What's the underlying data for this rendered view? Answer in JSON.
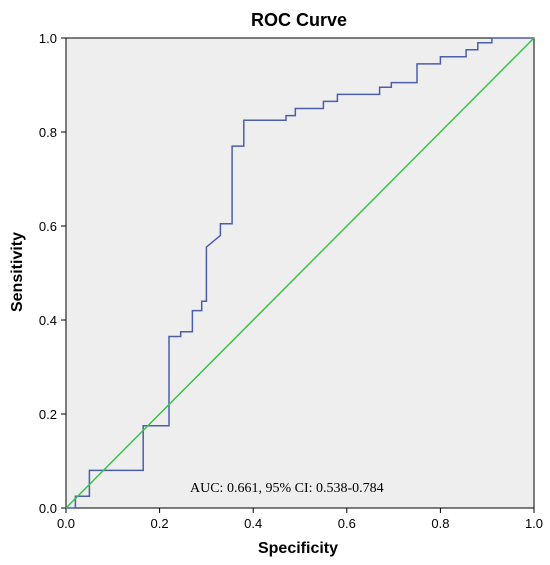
{
  "chart_data": {
    "type": "line",
    "title": "ROC Curve",
    "xlabel": "Specificity",
    "ylabel": "Sensitivity",
    "xlim": [
      0,
      1
    ],
    "ylim": [
      0,
      1
    ],
    "x_ticks": [
      "0.0",
      "0.2",
      "0.4",
      "0.6",
      "0.8",
      "1.0"
    ],
    "y_ticks": [
      "0.0",
      "0.2",
      "0.4",
      "0.6",
      "0.8",
      "1.0"
    ],
    "annotation": "AUC: 0.661, 95% CI: 0.538-0.784",
    "grid": false,
    "background_color": "#eeeeee",
    "series": [
      {
        "color": "#4a5fa8",
        "x": [
          0,
          0.02,
          0.02,
          0.05,
          0.05,
          0.165,
          0.165,
          0.22,
          0.22,
          0.245,
          0.245,
          0.27,
          0.27,
          0.29,
          0.29,
          0.3,
          0.3,
          0.33,
          0.33,
          0.355,
          0.355,
          0.38,
          0.38,
          0.47,
          0.47,
          0.49,
          0.49,
          0.55,
          0.55,
          0.58,
          0.58,
          0.67,
          0.67,
          0.695,
          0.695,
          0.75,
          0.75,
          0.8,
          0.8,
          0.855,
          0.855,
          0.88,
          0.88,
          0.91,
          0.91,
          1.0
        ],
        "y": [
          0,
          0,
          0.025,
          0.025,
          0.08,
          0.08,
          0.175,
          0.175,
          0.365,
          0.365,
          0.375,
          0.375,
          0.42,
          0.42,
          0.44,
          0.44,
          0.555,
          0.58,
          0.605,
          0.605,
          0.77,
          0.77,
          0.825,
          0.825,
          0.835,
          0.835,
          0.85,
          0.85,
          0.865,
          0.865,
          0.88,
          0.88,
          0.895,
          0.895,
          0.905,
          0.905,
          0.945,
          0.945,
          0.96,
          0.96,
          0.975,
          0.975,
          0.99,
          0.99,
          1.0,
          1.0
        ]
      },
      {
        "color": "#3cc24b",
        "x": [
          0,
          1
        ],
        "y": [
          0,
          1
        ]
      }
    ]
  }
}
